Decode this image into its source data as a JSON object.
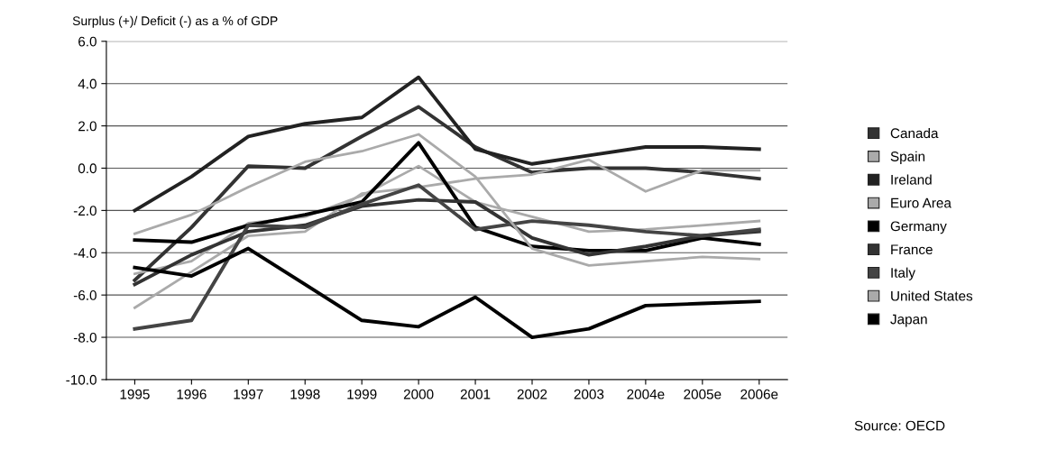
{
  "chart_data": {
    "type": "line",
    "ylabel": "Surplus (+)/ Deficit (-) as a % of GDP",
    "categories": [
      "1995",
      "1996",
      "1997",
      "1998",
      "1999",
      "2000",
      "2001",
      "2002",
      "2003",
      "2004e",
      "2005e",
      "2006e"
    ],
    "series": [
      {
        "name": "Canada",
        "color": "#333333",
        "values": [
          -5.3,
          -2.8,
          0.1,
          0.0,
          1.5,
          2.9,
          1.0,
          -0.2,
          0.0,
          0.0,
          -0.2,
          -0.5
        ]
      },
      {
        "name": "Spain",
        "color": "#aaaaaa",
        "values": [
          -6.6,
          -4.9,
          -3.2,
          -3.0,
          -1.2,
          -0.9,
          -0.5,
          -0.3,
          0.4,
          -1.1,
          -0.1,
          -0.1
        ]
      },
      {
        "name": "Ireland",
        "color": "#222222",
        "values": [
          -2.0,
          -0.4,
          1.5,
          2.1,
          2.4,
          4.3,
          0.9,
          0.2,
          0.6,
          1.0,
          1.0,
          0.9
        ]
      },
      {
        "name": "Euro Area",
        "color": "#aaaaaa",
        "values": [
          -5.0,
          -4.4,
          -2.6,
          -2.3,
          -1.3,
          0.1,
          -1.6,
          -2.3,
          -3.0,
          -2.9,
          -2.7,
          -2.5
        ]
      },
      {
        "name": "Germany",
        "color": "#000000",
        "values": [
          -3.4,
          -3.5,
          -2.7,
          -2.2,
          -1.6,
          1.2,
          -2.8,
          -3.7,
          -3.9,
          -3.9,
          -3.3,
          -3.6
        ]
      },
      {
        "name": "France",
        "color": "#333333",
        "values": [
          -5.5,
          -4.1,
          -3.0,
          -2.7,
          -1.8,
          -1.5,
          -1.6,
          -3.3,
          -4.1,
          -3.7,
          -3.2,
          -3.0
        ]
      },
      {
        "name": "Italy",
        "color": "#444444",
        "values": [
          -7.6,
          -7.2,
          -2.7,
          -2.8,
          -1.7,
          -0.8,
          -2.9,
          -2.5,
          -2.7,
          -3.0,
          -3.2,
          -2.9
        ]
      },
      {
        "name": "United States",
        "color": "#aaaaaa",
        "values": [
          -3.1,
          -2.2,
          -0.9,
          0.3,
          0.8,
          1.6,
          -0.4,
          -3.8,
          -4.6,
          -4.4,
          -4.2,
          -4.3
        ]
      },
      {
        "name": "Japan",
        "color": "#000000",
        "values": [
          -4.7,
          -5.1,
          -3.8,
          -5.5,
          -7.2,
          -7.5,
          -6.1,
          -8.0,
          -7.6,
          -6.5,
          -6.4,
          -6.3
        ]
      }
    ],
    "ylim": [
      -10.0,
      6.0
    ],
    "yticks": [
      {
        "value": -10,
        "label": "-10.0"
      },
      {
        "value": -8,
        "label": "-8.0"
      },
      {
        "value": -6,
        "label": "-6.0"
      },
      {
        "value": -4,
        "label": "-4.0"
      },
      {
        "value": -2,
        "label": "-2.0"
      },
      {
        "value": 0,
        "label": "0.0"
      },
      {
        "value": 2,
        "label": "2.0"
      },
      {
        "value": 4,
        "label": "4.0"
      },
      {
        "value": 6,
        "label": "6.0"
      }
    ],
    "grid": "y",
    "legend": "right",
    "marker": "none",
    "line_style": "solid",
    "annotations": [
      "Source: OECD"
    ]
  }
}
